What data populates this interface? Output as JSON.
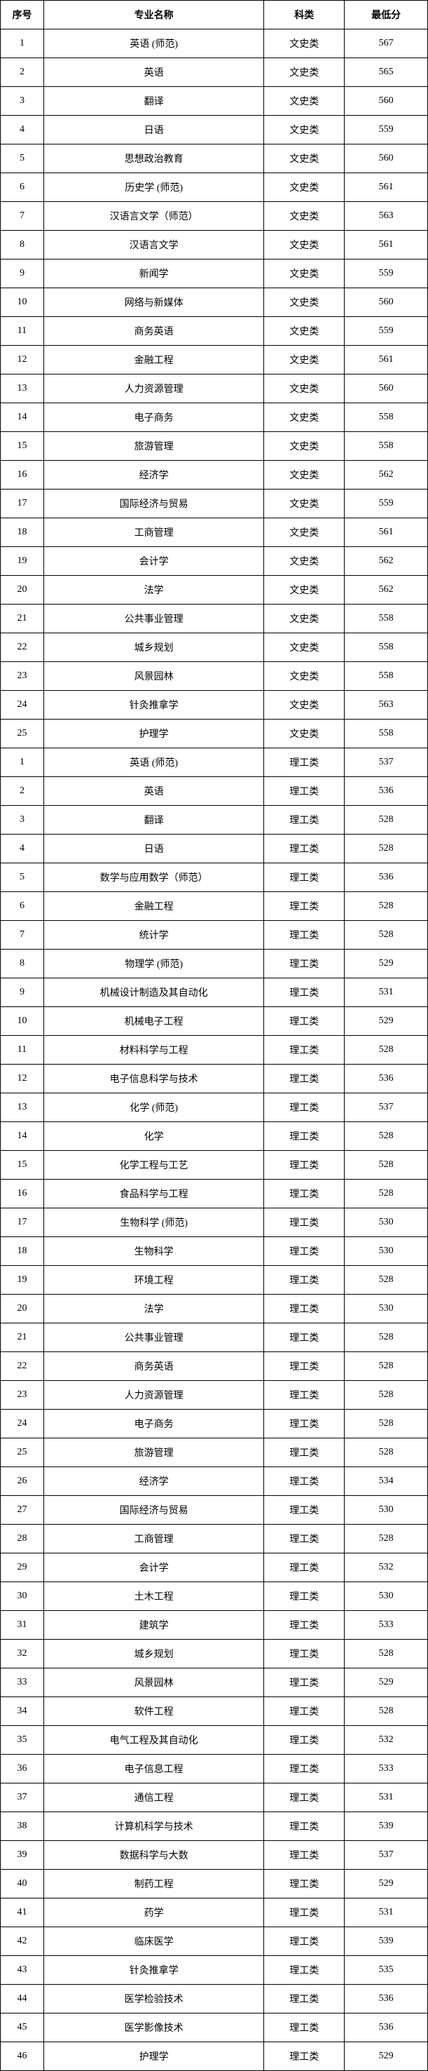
{
  "table": {
    "headers": {
      "index": "序号",
      "major": "专业名称",
      "category": "科类",
      "score": "最低分"
    },
    "rows": [
      {
        "index": "1",
        "major": "英语 (师范)",
        "category": "文史类",
        "score": "567"
      },
      {
        "index": "2",
        "major": "英语",
        "category": "文史类",
        "score": "565"
      },
      {
        "index": "3",
        "major": "翻译",
        "category": "文史类",
        "score": "560"
      },
      {
        "index": "4",
        "major": "日语",
        "category": "文史类",
        "score": "559"
      },
      {
        "index": "5",
        "major": "思想政治教育",
        "category": "文史类",
        "score": "560"
      },
      {
        "index": "6",
        "major": "历史学 (师范)",
        "category": "文史类",
        "score": "561"
      },
      {
        "index": "7",
        "major": "汉语言文学（师范）",
        "category": "文史类",
        "score": "563"
      },
      {
        "index": "8",
        "major": "汉语言文学",
        "category": "文史类",
        "score": "561"
      },
      {
        "index": "9",
        "major": "新闻学",
        "category": "文史类",
        "score": "559"
      },
      {
        "index": "10",
        "major": "网络与新媒体",
        "category": "文史类",
        "score": "560"
      },
      {
        "index": "11",
        "major": "商务英语",
        "category": "文史类",
        "score": "559"
      },
      {
        "index": "12",
        "major": "金融工程",
        "category": "文史类",
        "score": "561"
      },
      {
        "index": "13",
        "major": "人力资源管理",
        "category": "文史类",
        "score": "560"
      },
      {
        "index": "14",
        "major": "电子商务",
        "category": "文史类",
        "score": "558"
      },
      {
        "index": "15",
        "major": "旅游管理",
        "category": "文史类",
        "score": "558"
      },
      {
        "index": "16",
        "major": "经济学",
        "category": "文史类",
        "score": "562"
      },
      {
        "index": "17",
        "major": "国际经济与贸易",
        "category": "文史类",
        "score": "559"
      },
      {
        "index": "18",
        "major": "工商管理",
        "category": "文史类",
        "score": "561"
      },
      {
        "index": "19",
        "major": "会计学",
        "category": "文史类",
        "score": "562"
      },
      {
        "index": "20",
        "major": "法学",
        "category": "文史类",
        "score": "562"
      },
      {
        "index": "21",
        "major": "公共事业管理",
        "category": "文史类",
        "score": "558"
      },
      {
        "index": "22",
        "major": "城乡规划",
        "category": "文史类",
        "score": "558"
      },
      {
        "index": "23",
        "major": "风景园林",
        "category": "文史类",
        "score": "558"
      },
      {
        "index": "24",
        "major": "针灸推拿学",
        "category": "文史类",
        "score": "563"
      },
      {
        "index": "25",
        "major": "护理学",
        "category": "文史类",
        "score": "558"
      },
      {
        "index": "1",
        "major": "英语 (师范)",
        "category": "理工类",
        "score": "537"
      },
      {
        "index": "2",
        "major": "英语",
        "category": "理工类",
        "score": "536"
      },
      {
        "index": "3",
        "major": "翻译",
        "category": "理工类",
        "score": "528"
      },
      {
        "index": "4",
        "major": "日语",
        "category": "理工类",
        "score": "528"
      },
      {
        "index": "5",
        "major": "数学与应用数学（师范）",
        "category": "理工类",
        "score": "536"
      },
      {
        "index": "6",
        "major": "金融工程",
        "category": "理工类",
        "score": "528"
      },
      {
        "index": "7",
        "major": "统计学",
        "category": "理工类",
        "score": "528"
      },
      {
        "index": "8",
        "major": "物理学 (师范)",
        "category": "理工类",
        "score": "529"
      },
      {
        "index": "9",
        "major": "机械设计制造及其自动化",
        "category": "理工类",
        "score": "531"
      },
      {
        "index": "10",
        "major": "机械电子工程",
        "category": "理工类",
        "score": "529"
      },
      {
        "index": "11",
        "major": "材料科学与工程",
        "category": "理工类",
        "score": "528"
      },
      {
        "index": "12",
        "major": "电子信息科学与技术",
        "category": "理工类",
        "score": "536"
      },
      {
        "index": "13",
        "major": "化学 (师范)",
        "category": "理工类",
        "score": "537"
      },
      {
        "index": "14",
        "major": "化学",
        "category": "理工类",
        "score": "528"
      },
      {
        "index": "15",
        "major": "化学工程与工艺",
        "category": "理工类",
        "score": "528"
      },
      {
        "index": "16",
        "major": "食品科学与工程",
        "category": "理工类",
        "score": "528"
      },
      {
        "index": "17",
        "major": "生物科学 (师范)",
        "category": "理工类",
        "score": "530"
      },
      {
        "index": "18",
        "major": "生物科学",
        "category": "理工类",
        "score": "530"
      },
      {
        "index": "19",
        "major": "环境工程",
        "category": "理工类",
        "score": "528"
      },
      {
        "index": "20",
        "major": "法学",
        "category": "理工类",
        "score": "530"
      },
      {
        "index": "21",
        "major": "公共事业管理",
        "category": "理工类",
        "score": "528"
      },
      {
        "index": "22",
        "major": "商务英语",
        "category": "理工类",
        "score": "528"
      },
      {
        "index": "23",
        "major": "人力资源管理",
        "category": "理工类",
        "score": "528"
      },
      {
        "index": "24",
        "major": "电子商务",
        "category": "理工类",
        "score": "528"
      },
      {
        "index": "25",
        "major": "旅游管理",
        "category": "理工类",
        "score": "528"
      },
      {
        "index": "26",
        "major": "经济学",
        "category": "理工类",
        "score": "534"
      },
      {
        "index": "27",
        "major": "国际经济与贸易",
        "category": "理工类",
        "score": "530"
      },
      {
        "index": "28",
        "major": "工商管理",
        "category": "理工类",
        "score": "528"
      },
      {
        "index": "29",
        "major": "会计学",
        "category": "理工类",
        "score": "532"
      },
      {
        "index": "30",
        "major": "土木工程",
        "category": "理工类",
        "score": "530"
      },
      {
        "index": "31",
        "major": "建筑学",
        "category": "理工类",
        "score": "533"
      },
      {
        "index": "32",
        "major": "城乡规划",
        "category": "理工类",
        "score": "528"
      },
      {
        "index": "33",
        "major": "风景园林",
        "category": "理工类",
        "score": "529"
      },
      {
        "index": "34",
        "major": "软件工程",
        "category": "理工类",
        "score": "528"
      },
      {
        "index": "35",
        "major": "电气工程及其自动化",
        "category": "理工类",
        "score": "532"
      },
      {
        "index": "36",
        "major": "电子信息工程",
        "category": "理工类",
        "score": "533"
      },
      {
        "index": "37",
        "major": "通信工程",
        "category": "理工类",
        "score": "531"
      },
      {
        "index": "38",
        "major": "计算机科学与技术",
        "category": "理工类",
        "score": "539"
      },
      {
        "index": "39",
        "major": "数据科学与大数",
        "category": "理工类",
        "score": "537"
      },
      {
        "index": "40",
        "major": "制药工程",
        "category": "理工类",
        "score": "529"
      },
      {
        "index": "41",
        "major": "药学",
        "category": "理工类",
        "score": "531"
      },
      {
        "index": "42",
        "major": "临床医学",
        "category": "理工类",
        "score": "539"
      },
      {
        "index": "43",
        "major": "针灸推拿学",
        "category": "理工类",
        "score": "535"
      },
      {
        "index": "44",
        "major": "医学检验技术",
        "category": "理工类",
        "score": "536"
      },
      {
        "index": "45",
        "major": "医学影像技术",
        "category": "理工类",
        "score": "536"
      },
      {
        "index": "46",
        "major": "护理学",
        "category": "理工类",
        "score": "529"
      }
    ]
  }
}
